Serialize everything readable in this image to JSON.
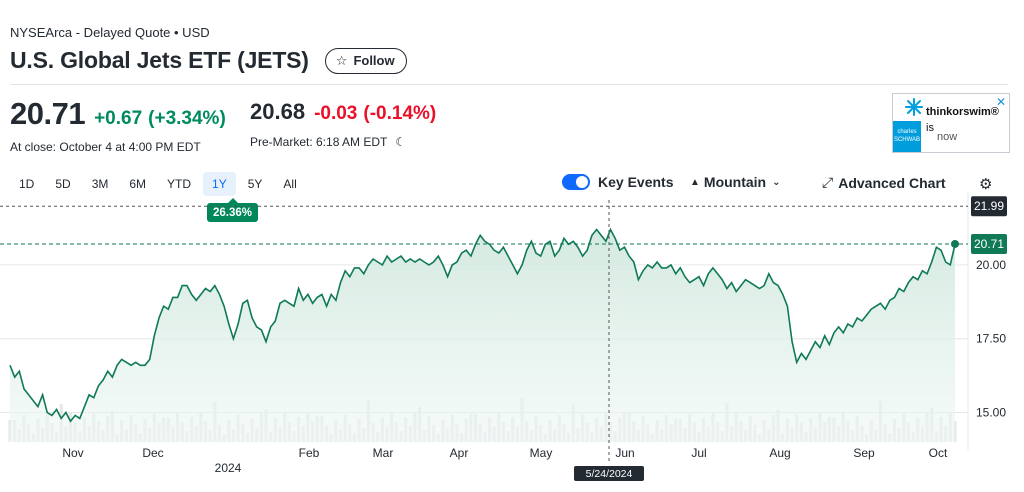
{
  "header": {
    "exchange_line": "NYSEArca - Delayed Quote • USD",
    "title": "U.S. Global Jets ETF (JETS)",
    "follow_label": "Follow",
    "follow_icon": "star-icon"
  },
  "quote": {
    "close_price": "20.71",
    "close_change": "+0.67",
    "close_change_pct": "(+3.34%)",
    "close_time": "At close: October 4 at 4:00 PM EDT",
    "pre_price": "20.68",
    "pre_change": "-0.03",
    "pre_change_pct": "(-0.14%)",
    "pre_time": "Pre-Market: 6:18 AM EDT",
    "pre_icon": "moon-icon"
  },
  "ad": {
    "brand": "thinkorswim®",
    "line1": "is",
    "line2": "now",
    "sponsor": "charles SCHWAB",
    "close_icon": "close-icon"
  },
  "range_tabs": [
    "1D",
    "5D",
    "3M",
    "6M",
    "YTD",
    "1Y",
    "5Y",
    "All"
  ],
  "active_range": "1Y",
  "period_change_badge": "26.36%",
  "controls": {
    "key_events_label": "Key Events",
    "chart_type_label": "Mountain",
    "advanced_label": "Advanced Chart",
    "settings_icon": "gear-icon"
  },
  "colors": {
    "up": "#008a5f",
    "down": "#eb0f29",
    "line": "#0f7a55",
    "accent": "#0f69ff"
  },
  "chart_data": {
    "type": "area",
    "x_labels": [
      "Nov",
      "Dec",
      "Feb",
      "Mar",
      "Apr",
      "May",
      "Jun",
      "Jul",
      "Aug",
      "Sep",
      "Oct"
    ],
    "year_label": "2024",
    "y_ticks": [
      "20.00",
      "17.50",
      "15.00"
    ],
    "ylim": [
      14.0,
      22.2
    ],
    "previous_close_label": "21.99",
    "last_price_label": "20.71",
    "crosshair_date": "5/24/2024",
    "grid": true,
    "series": [
      {
        "values": [
          16.6,
          16.2,
          16.4,
          15.8,
          15.6,
          15.4,
          15.2,
          15.6,
          15.0,
          14.9,
          15.1,
          14.8,
          15.0,
          14.7,
          14.9,
          14.8,
          15.2,
          15.6,
          15.5,
          15.9,
          16.1,
          16.4,
          16.2,
          16.6,
          16.8,
          16.7,
          16.6,
          16.7,
          16.6,
          16.6,
          16.8,
          17.6,
          18.2,
          18.6,
          18.5,
          18.9,
          18.9,
          19.3,
          19.3,
          19.0,
          18.8,
          19.0,
          19.2,
          19.1,
          19.3,
          19.0,
          18.6,
          18.0,
          17.5,
          18.0,
          18.7,
          18.8,
          18.2,
          17.9,
          17.8,
          17.4,
          17.9,
          18.1,
          18.7,
          18.8,
          18.7,
          18.6,
          19.2,
          18.8,
          19.0,
          18.7,
          18.9,
          19.0,
          18.6,
          19.0,
          18.8,
          19.4,
          19.8,
          19.6,
          19.9,
          19.9,
          19.7,
          20.0,
          20.2,
          20.1,
          20.0,
          20.3,
          20.1,
          20.2,
          20.3,
          20.1,
          20.2,
          20.1,
          20.2,
          20.1,
          20.0,
          20.1,
          20.3,
          20.0,
          19.6,
          20.0,
          20.1,
          20.4,
          20.5,
          20.3,
          20.7,
          21.0,
          20.8,
          20.7,
          20.5,
          20.4,
          20.6,
          20.3,
          20.0,
          19.7,
          20.0,
          20.5,
          20.8,
          20.4,
          20.3,
          20.7,
          20.8,
          20.3,
          20.5,
          20.9,
          20.7,
          20.8,
          20.6,
          20.3,
          20.5,
          21.0,
          21.2,
          21.0,
          20.8,
          21.2,
          20.9,
          20.5,
          20.6,
          20.3,
          20.1,
          19.5,
          19.8,
          20.0,
          19.9,
          20.1,
          19.9,
          19.9,
          20.0,
          19.7,
          19.9,
          19.6,
          19.4,
          19.5,
          19.6,
          19.3,
          19.7,
          19.9,
          19.7,
          19.5,
          19.2,
          19.4,
          19.1,
          19.3,
          19.5,
          19.4,
          19.3,
          19.2,
          19.3,
          19.7,
          19.4,
          19.3,
          19.0,
          18.6,
          17.4,
          16.7,
          17.0,
          16.8,
          17.1,
          17.4,
          17.2,
          17.6,
          17.3,
          17.7,
          17.9,
          17.7,
          18.0,
          17.9,
          18.2,
          18.1,
          18.3,
          18.5,
          18.6,
          18.7,
          18.5,
          18.8,
          18.9,
          19.2,
          19.1,
          19.4,
          19.6,
          19.5,
          19.8,
          19.7,
          20.1,
          20.6,
          20.5,
          20.1,
          20.0,
          20.7
        ]
      }
    ]
  }
}
